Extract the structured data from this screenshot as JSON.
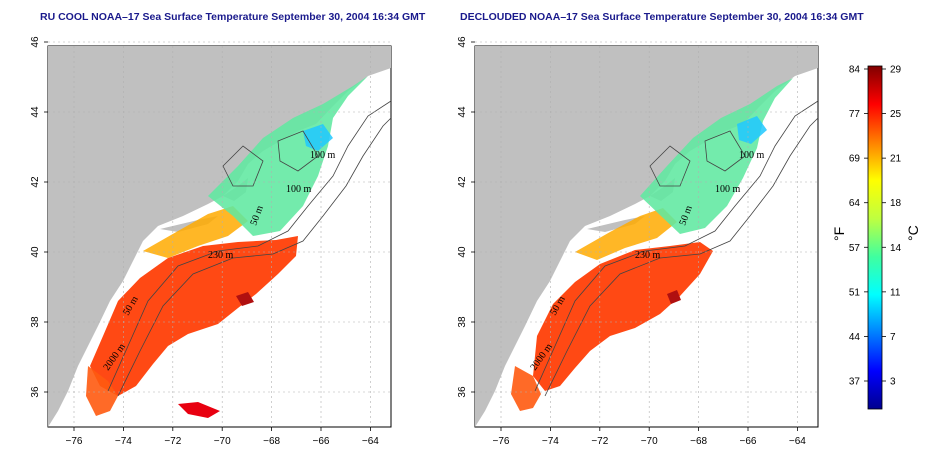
{
  "panels": [
    {
      "title": "RU COOL NOAA–17 Sea Surface Temperature September 30, 2004 16:34 GMT",
      "contour_labels": [
        "100 m",
        "100 m",
        "50 m",
        "230 m",
        "50 m",
        "2000 m"
      ]
    },
    {
      "title": "DECLOUDED NOAA–17 Sea Surface Temperature September 30, 2004 16:34 GMT",
      "contour_labels": [
        "100 m",
        "100 m",
        "50 m",
        "230 m",
        "50 m",
        "2000 m"
      ]
    }
  ],
  "axes": {
    "x_ticks": [
      "−76",
      "−74",
      "−72",
      "−70",
      "−68",
      "−66",
      "−64"
    ],
    "y_ticks": [
      "36",
      "38",
      "40",
      "42",
      "44",
      "46"
    ]
  },
  "colorbar": {
    "f_ticks": [
      "84",
      "77",
      "69",
      "64",
      "57",
      "51",
      "44",
      "37"
    ],
    "c_ticks": [
      "29",
      "25",
      "21",
      "18",
      "14",
      "11",
      "7",
      "3"
    ],
    "f_unit": "°F",
    "c_unit": "°C",
    "colors": [
      "#00008f",
      "#0000ff",
      "#0080ff",
      "#00ffff",
      "#40ff9f",
      "#bfff40",
      "#ffff00",
      "#ff8000",
      "#ff0000",
      "#800000"
    ]
  },
  "colors": {
    "land": "#c0c0c0",
    "water": "#ffffff",
    "title": "#1a1a8c",
    "grid": "#b0b0b0",
    "contour": "#444444"
  }
}
